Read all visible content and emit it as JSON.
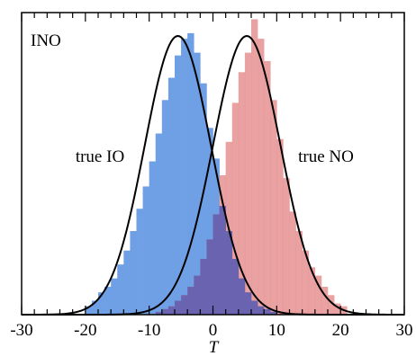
{
  "chart_data": {
    "type": "bar",
    "title": "",
    "panel_label": "INO",
    "xlabel": "T",
    "ylabel": "",
    "xlim": [
      -30,
      30
    ],
    "x_ticks": [
      -30,
      -20,
      -10,
      0,
      10,
      20,
      30
    ],
    "y_ticks_labeled": false,
    "grid": false,
    "legend": "none",
    "annotations": [
      {
        "text": "true IO",
        "x": -18,
        "series": "true IO"
      },
      {
        "text": "true NO",
        "x": 17,
        "series": "true NO"
      }
    ],
    "series": [
      {
        "name": "true IO",
        "kind": "histogram",
        "color": "#6f9fe4",
        "fit": {
          "kind": "gaussian",
          "mean": -5.5,
          "sigma": 5.2,
          "peak": 1.0
        },
        "bin_width": 1,
        "bins_x": [
          -20,
          -19,
          -18,
          -17,
          -16,
          -15,
          -14,
          -13,
          -12,
          -11,
          -10,
          -9,
          -8,
          -7,
          -6,
          -5,
          -4,
          -3,
          -2,
          -1,
          0,
          1,
          2,
          3,
          4,
          5,
          6,
          7,
          8,
          9
        ],
        "values": [
          0.03,
          0.05,
          0.08,
          0.1,
          0.13,
          0.18,
          0.23,
          0.3,
          0.38,
          0.46,
          0.55,
          0.65,
          0.77,
          0.85,
          0.93,
          0.99,
          1.01,
          0.94,
          0.83,
          0.67,
          0.56,
          0.39,
          0.3,
          0.2,
          0.13,
          0.08,
          0.05,
          0.03,
          0.02,
          0.01
        ]
      },
      {
        "name": "true NO",
        "kind": "histogram",
        "color": "#e58a8a",
        "fit": {
          "kind": "gaussian",
          "mean": 5.3,
          "sigma": 5.3,
          "peak": 1.0
        },
        "bin_width": 1,
        "bins_x": [
          -9,
          -8,
          -7,
          -6,
          -5,
          -4,
          -3,
          -2,
          -1,
          0,
          1,
          2,
          3,
          4,
          5,
          6,
          7,
          8,
          9,
          10,
          11,
          12,
          13,
          14,
          15,
          16,
          17,
          18,
          19,
          20
        ],
        "values": [
          0.01,
          0.02,
          0.03,
          0.05,
          0.07,
          0.1,
          0.14,
          0.2,
          0.27,
          0.36,
          0.5,
          0.62,
          0.76,
          0.87,
          0.94,
          1.06,
          0.99,
          0.91,
          0.77,
          0.63,
          0.49,
          0.37,
          0.3,
          0.23,
          0.17,
          0.14,
          0.1,
          0.07,
          0.04,
          0.03
        ]
      }
    ]
  }
}
